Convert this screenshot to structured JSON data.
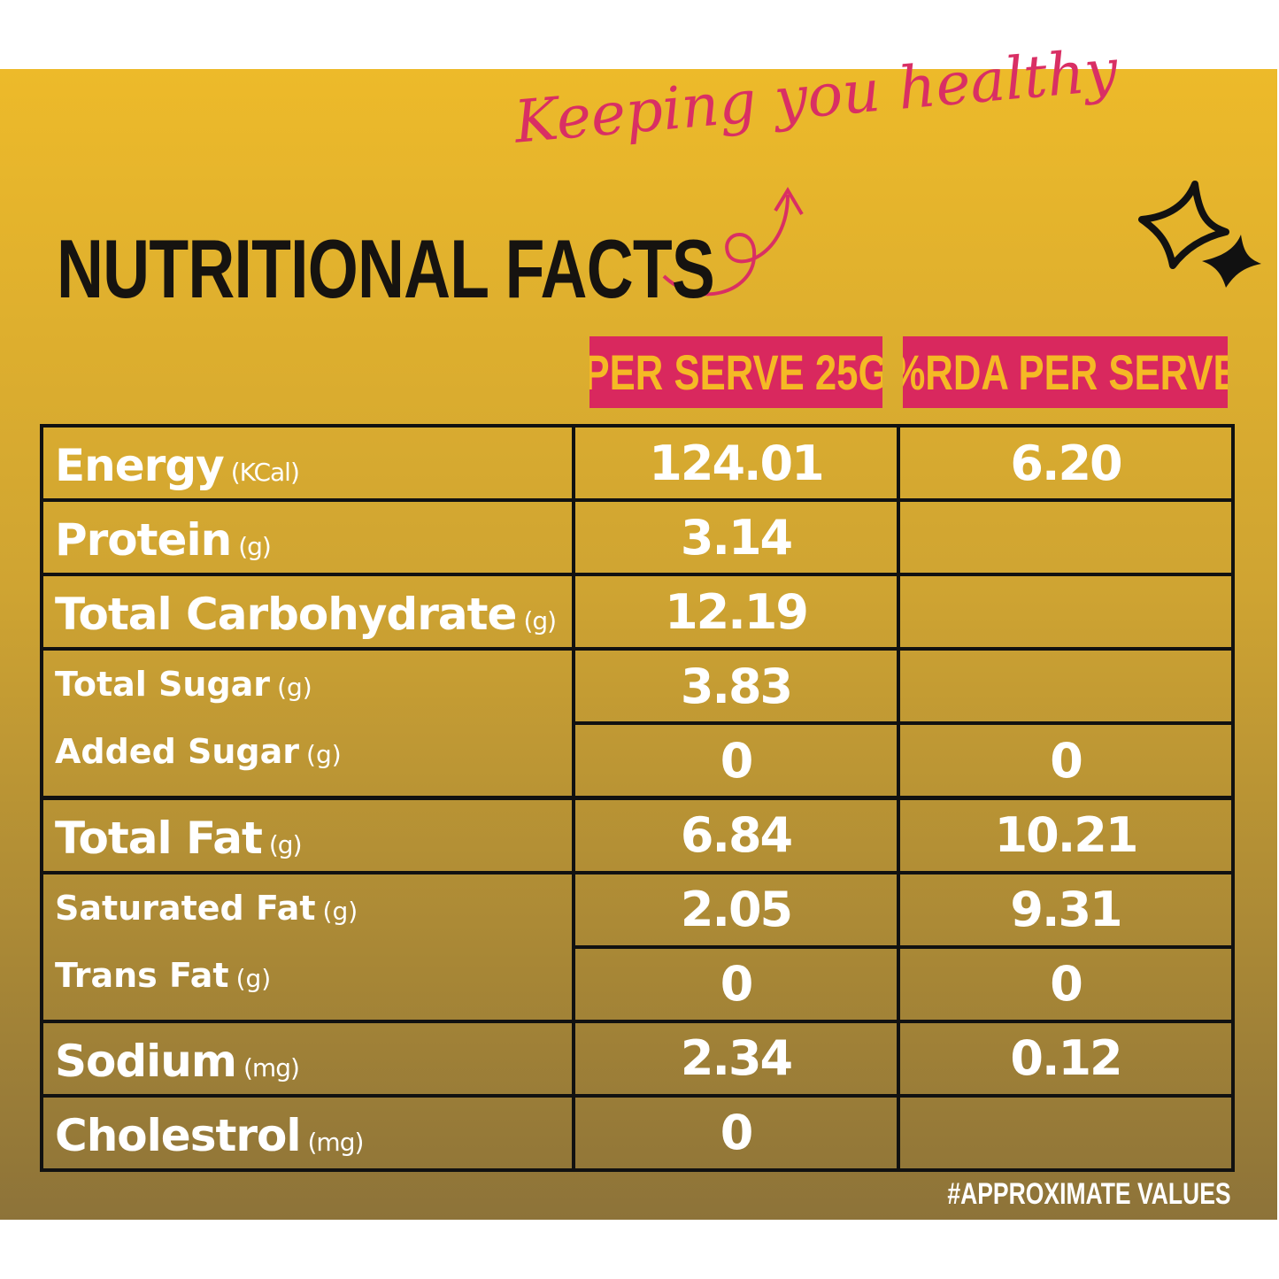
{
  "header": {
    "tagline": "Keeping you healthy",
    "title": "NUTRITIONAL FACTS"
  },
  "table": {
    "columns": [
      "PER SERVE 25G",
      "%RDA PER SERVE"
    ],
    "groups": [
      {
        "rows": [
          {
            "label": "Energy",
            "unit": "(KCal)",
            "values": [
              "124.01",
              "6.20"
            ]
          }
        ]
      },
      {
        "rows": [
          {
            "label": "Protein",
            "unit": "(g)",
            "values": [
              "3.14"
            ]
          }
        ]
      },
      {
        "rows": [
          {
            "label": "Total Carbohydrate",
            "unit": "(g)",
            "values": [
              "12.19"
            ]
          }
        ]
      },
      {
        "rows": [
          {
            "label": "Total Sugar",
            "unit": "(g)",
            "values": [
              "3.83"
            ]
          },
          {
            "label": "Added Sugar",
            "unit": "(g)",
            "values": [
              "0",
              "0"
            ]
          }
        ]
      },
      {
        "rows": [
          {
            "label": "Total Fat",
            "unit": "(g)",
            "values": [
              "6.84",
              "10.21"
            ]
          }
        ]
      },
      {
        "rows": [
          {
            "label": "Saturated Fat",
            "unit": "(g)",
            "values": [
              "2.05",
              "9.31"
            ]
          },
          {
            "label": "Trans Fat",
            "unit": "(g)",
            "values": [
              "0",
              "0"
            ]
          }
        ]
      },
      {
        "rows": [
          {
            "label": "Sodium",
            "unit": "(mg)",
            "values": [
              "2.34",
              "0.12"
            ]
          }
        ]
      },
      {
        "rows": [
          {
            "label": "Cholestrol",
            "unit": "(mg)",
            "values": [
              "0"
            ]
          }
        ]
      }
    ]
  },
  "footnote": "#APPROXIMATE VALUES"
}
